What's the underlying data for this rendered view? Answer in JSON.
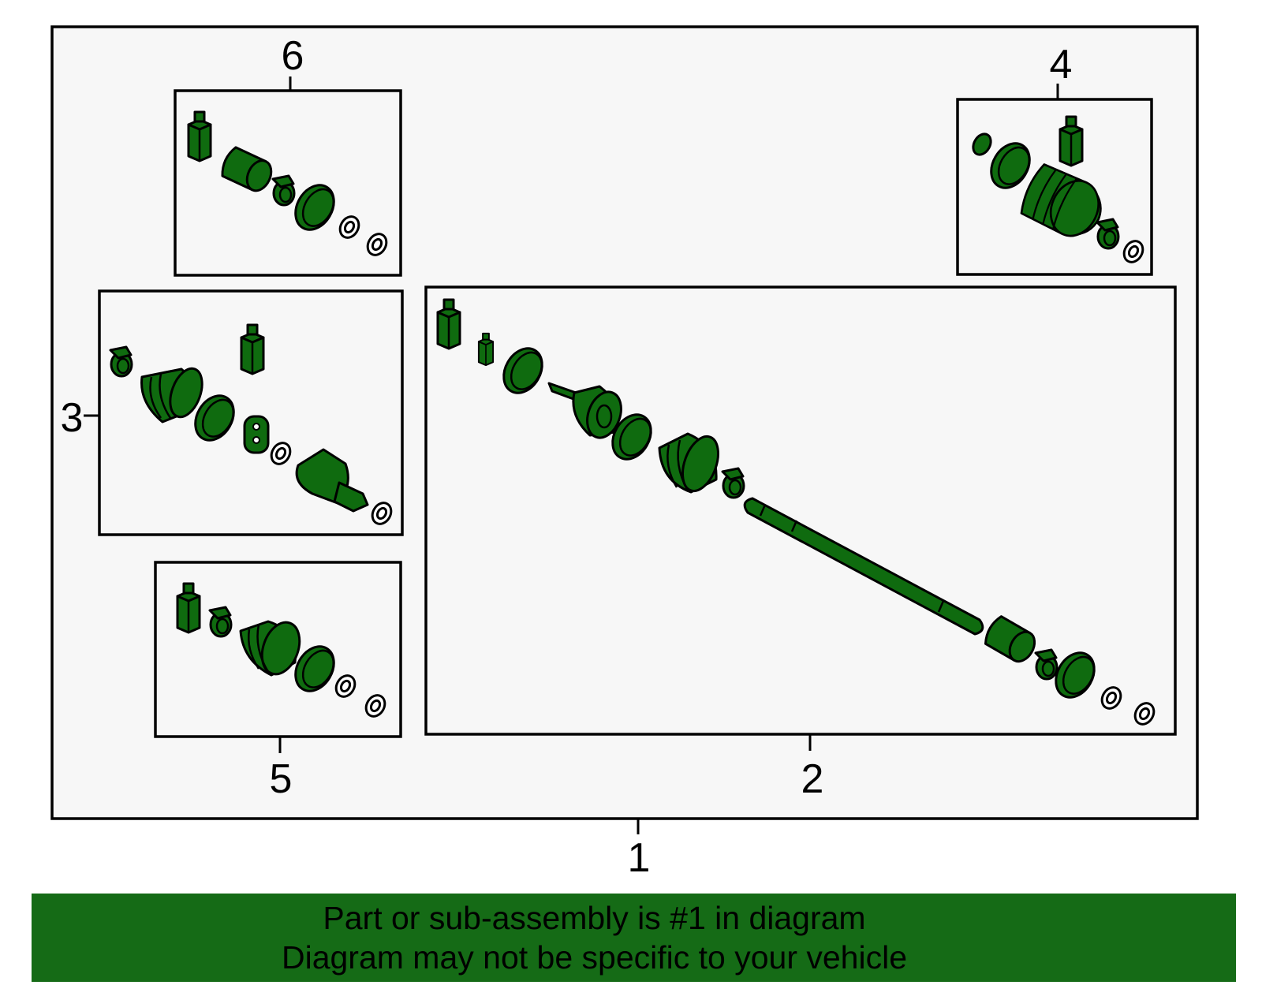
{
  "callouts": {
    "n1": "1",
    "n2": "2",
    "n3": "3",
    "n4": "4",
    "n5": "5",
    "n6": "6"
  },
  "banner": {
    "line1": "Part or sub-assembly is #1 in diagram",
    "line2": "Diagram may not be specific to your vehicle"
  },
  "colors": {
    "part_fill": "#0f6b0f",
    "banner_bg": "#156b16",
    "frame_bg": "#f7f7f7"
  }
}
